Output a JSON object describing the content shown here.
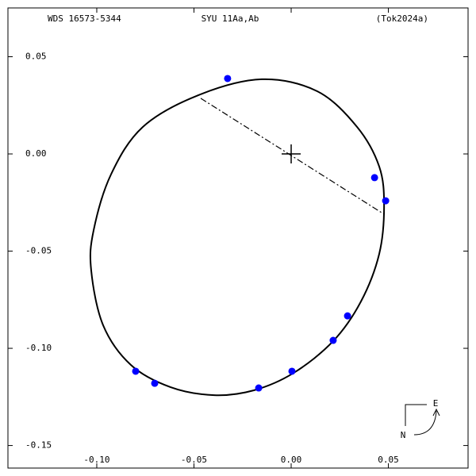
{
  "chart_data": {
    "type": "scatter",
    "title": "SYU  11Aa,Ab",
    "subtitle": "WDS 16573-5344",
    "reference": "(Tok2024a)",
    "compass": {
      "east": "E",
      "north": "N"
    },
    "xlim": [
      -0.1457,
      0.091
    ],
    "ylim": [
      -0.1616,
      0.0751
    ],
    "xticks": [
      {
        "value": -0.1,
        "label": "-0.10"
      },
      -0.05,
      {
        "value": 0,
        "label": "0.00"
      },
      0.05
    ],
    "yticks": [
      0.05,
      {
        "value": 0,
        "label": "0.00"
      },
      -0.05,
      {
        "value": -0.1,
        "label": "-0.10"
      },
      -0.15
    ],
    "series": [
      {
        "color": "#0000ff",
        "x": [
          -0.0327,
          0.0429,
          0.0486,
          0.029,
          0.0216,
          0.0004,
          -0.0167,
          -0.0702,
          -0.08
        ],
        "values": [
          0.0388,
          -0.0122,
          -0.0241,
          -0.0833,
          -0.0959,
          -0.1118,
          -0.1204,
          -0.118,
          -0.1118
        ]
      }
    ],
    "orbit": {
      "color": "#000000",
      "x": [
        -0.0151,
        0.0135,
        0.0339,
        0.0453,
        0.0478,
        0.0453,
        0.0359,
        0.0216,
        0.0012,
        -0.0192,
        -0.0396,
        -0.062,
        -0.0824,
        -0.0967,
        -0.1029,
        -0.1016,
        -0.0927,
        -0.0763,
        -0.0478
      ],
      "values": [
        0.0384,
        0.0322,
        0.0139,
        -0.0065,
        -0.0269,
        -0.0514,
        -0.0759,
        -0.0963,
        -0.1127,
        -0.1216,
        -0.1241,
        -0.12,
        -0.1086,
        -0.0882,
        -0.0596,
        -0.0392,
        -0.0106,
        0.0139,
        0.0302
      ]
    },
    "node_line": {
      "x": [
        -0.0465,
        0.0478
      ],
      "values": [
        0.0286,
        -0.031
      ]
    },
    "primary": {
      "x": 0,
      "y": 0
    }
  }
}
